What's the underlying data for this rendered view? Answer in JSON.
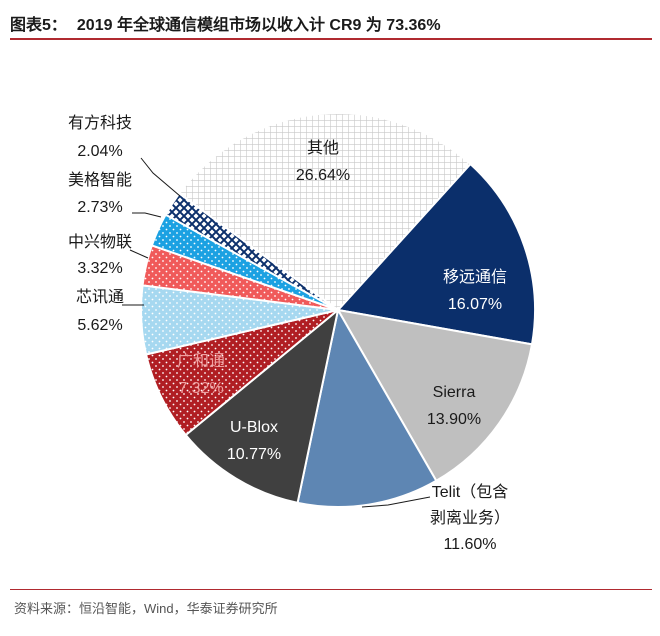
{
  "title_prefix": "图表5：",
  "title": "2019 年全球通信模组市场以收入计 CR9 为 73.36%",
  "source": "资料来源：恒沿智能，Wind，华泰证券研究所",
  "colors": {
    "accent": "#b02a30"
  },
  "chart_data": {
    "type": "pie",
    "title": "2019 年全球通信模组市场以收入计 CR9 为 73.36%",
    "slices": [
      {
        "name": "移远通信",
        "value": 16.07,
        "label": "16.07%",
        "color": "#0b2f6b"
      },
      {
        "name": "Sierra",
        "value": 13.9,
        "label": "13.90%",
        "color": "#bfbfbf"
      },
      {
        "name": "Telit（包含剥离业务）",
        "value": 11.6,
        "label": "11.60%",
        "color": "#5e86b3"
      },
      {
        "name": "U-Blox",
        "value": 10.77,
        "label": "10.77%",
        "color": "#404040"
      },
      {
        "name": "广和通",
        "value": 7.32,
        "label": "7.32%",
        "color": "#b01e23"
      },
      {
        "name": "芯讯通",
        "value": 5.62,
        "label": "5.62%",
        "color": "#a6d8f0"
      },
      {
        "name": "中兴物联",
        "value": 3.32,
        "label": "3.32%",
        "color": "#f05a5a"
      },
      {
        "name": "美格智能",
        "value": 2.73,
        "label": "2.73%",
        "color": "#1ba1e2"
      },
      {
        "name": "有方科技",
        "value": 2.04,
        "label": "2.04%",
        "color": "#0b2f6b"
      },
      {
        "name": "其他",
        "value": 26.64,
        "label": "26.64%",
        "color": "#d9d9d9"
      }
    ]
  }
}
